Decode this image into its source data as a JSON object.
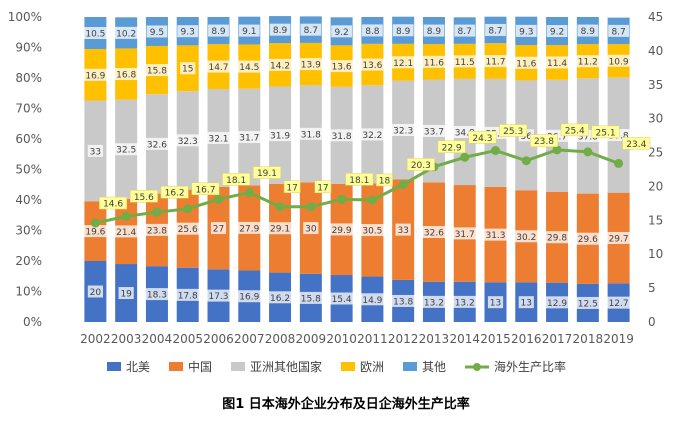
{
  "chart_data": {
    "type": "bar",
    "stacked": true,
    "title": "图1 日本海外企业分布及日企海外生产比率",
    "categories": [
      "2002",
      "2003",
      "2004",
      "2005",
      "2006",
      "2007",
      "2008",
      "2009",
      "2010",
      "2011",
      "2012",
      "2013",
      "2014",
      "2015",
      "2016",
      "2017",
      "2018",
      "2019"
    ],
    "y_left": {
      "ylim": [
        0,
        100
      ],
      "ticks": [
        "0%",
        "10%",
        "20%",
        "30%",
        "40%",
        "50%",
        "60%",
        "70%",
        "80%",
        "90%",
        "100%"
      ]
    },
    "y_right": {
      "ylim": [
        0,
        45
      ],
      "ticks": [
        "0",
        "5",
        "10",
        "15",
        "20",
        "25",
        "30",
        "35",
        "40",
        "45"
      ]
    },
    "series": [
      {
        "name": "北美",
        "color": "#4472c4",
        "values": [
          20,
          19,
          18.3,
          17.8,
          17.3,
          16.9,
          16.2,
          15.8,
          15.4,
          14.9,
          13.8,
          13.2,
          13.2,
          13,
          13,
          12.9,
          12.5,
          12.7
        ]
      },
      {
        "name": "中国",
        "color": "#ed7d31",
        "values": [
          19.6,
          21.4,
          23.8,
          25.6,
          27,
          27.9,
          29.1,
          30,
          29.9,
          30.5,
          33,
          32.6,
          31.7,
          31.3,
          30.2,
          29.8,
          29.6,
          29.7
        ]
      },
      {
        "name": "亚洲其他国家",
        "color": "#c9c9c9",
        "values": [
          33,
          32.5,
          32.6,
          32.3,
          32.1,
          31.7,
          31.9,
          31.8,
          31.8,
          32.2,
          32.3,
          33.7,
          34.8,
          35.4,
          36,
          36.7,
          37.8,
          37.8
        ]
      },
      {
        "name": "欧洲",
        "color": "#ffc000",
        "values": [
          16.9,
          16.8,
          15.8,
          15,
          14.7,
          14.5,
          14.2,
          13.9,
          13.6,
          13.6,
          12.1,
          11.6,
          11.5,
          11.7,
          11.6,
          11.4,
          11.2,
          10.9
        ]
      },
      {
        "name": "其他",
        "color": "#5b9bd5",
        "values": [
          10.5,
          10.2,
          9.5,
          9.3,
          8.9,
          9.1,
          8.9,
          8.7,
          9.2,
          8.8,
          8.9,
          8.9,
          8.7,
          8.7,
          9.3,
          9.2,
          8.9,
          8.7
        ]
      }
    ],
    "line_series": {
      "name": "海外生产比率",
      "color": "#70ad47",
      "axis": "right",
      "values": [
        14.6,
        15.6,
        16.2,
        16.7,
        18.1,
        19.1,
        17,
        17,
        18.1,
        18,
        20.3,
        22.9,
        24.3,
        25.3,
        23.8,
        25.4,
        25.1,
        23.4
      ]
    },
    "legend_position": "bottom",
    "grid": false
  }
}
